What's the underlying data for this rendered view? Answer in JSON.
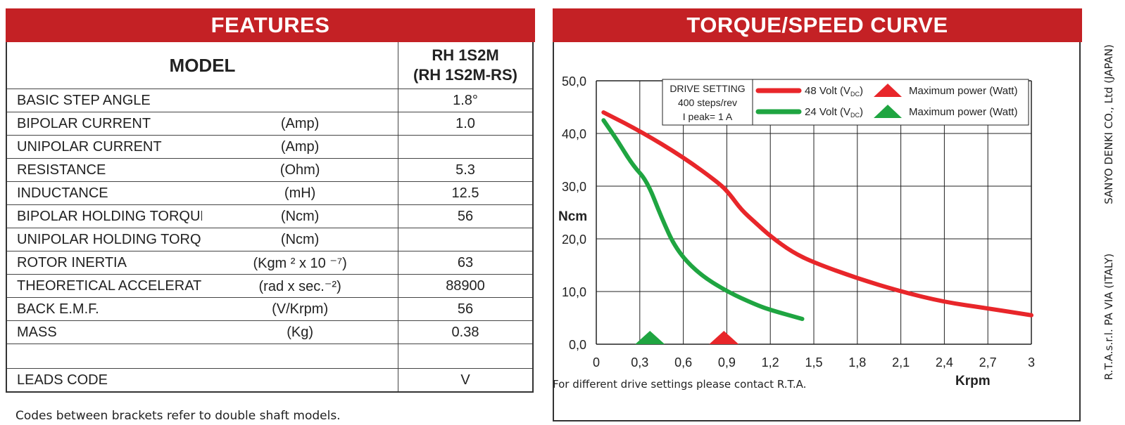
{
  "features": {
    "title": "FEATURES",
    "model_label": "MODEL",
    "model_value_line1": "RH 1S2M",
    "model_value_line2": "(RH 1S2M-RS)",
    "rows": [
      {
        "label": "BASIC STEP ANGLE",
        "unit": "",
        "value": "1.8°"
      },
      {
        "label": "BIPOLAR CURRENT",
        "unit": "(Amp)",
        "value": "1.0"
      },
      {
        "label": "UNIPOLAR CURRENT",
        "unit": "(Amp)",
        "value": ""
      },
      {
        "label": "RESISTANCE",
        "unit": "(Ohm)",
        "value": "5.3"
      },
      {
        "label": "INDUCTANCE",
        "unit": "(mH)",
        "value": "12.5"
      },
      {
        "label": "BIPOLAR HOLDING TORQUE",
        "unit": "(Ncm)",
        "value": "56"
      },
      {
        "label": "UNIPOLAR HOLDING TORQUE",
        "unit": "(Ncm)",
        "value": ""
      },
      {
        "label": "ROTOR INERTIA",
        "unit": "(Kgm ² x 10 ⁻⁷)",
        "value": "63"
      },
      {
        "label": "THEORETICAL ACCELERATION",
        "unit": "(rad x sec.⁻²)",
        "value": "88900"
      },
      {
        "label": "BACK E.M.F.",
        "unit": "(V/Krpm)",
        "value": "56"
      },
      {
        "label": "MASS",
        "unit": "(Kg)",
        "value": "0.38"
      },
      {
        "label": "",
        "unit": "",
        "value": ""
      },
      {
        "label": "LEADS CODE",
        "unit": "",
        "value": "V"
      }
    ],
    "footnote": "Codes between brackets refer to double shaft models."
  },
  "chart_data": {
    "type": "line",
    "title": "TORQUE/SPEED CURVE",
    "xlabel": "Krpm",
    "ylabel": "Ncm",
    "xlim": [
      0,
      3
    ],
    "ylim": [
      0,
      50
    ],
    "x_ticks": [
      "0",
      "0,3",
      "0,6",
      "0,9",
      "1,2",
      "1,5",
      "1,8",
      "2,1",
      "2,4",
      "2,7",
      "3"
    ],
    "y_ticks": [
      "0,0",
      "10,0",
      "20,0",
      "30,0",
      "40,0",
      "50,0"
    ],
    "grid": true,
    "drive_setting": {
      "title": "DRIVE SETTING",
      "steps": "400 steps/rev",
      "peak": "I peak= 1 A"
    },
    "series": [
      {
        "name": "48 Volt (V",
        "name_sub": "DC",
        "name_end": ")",
        "color": "#e8262a",
        "x": [
          0.05,
          0.3,
          0.6,
          0.85,
          0.92,
          1.0,
          1.1,
          1.2,
          1.35,
          1.5,
          1.8,
          2.1,
          2.4,
          2.7,
          3.0
        ],
        "y": [
          44.0,
          40.5,
          35.5,
          30.5,
          28.5,
          25.5,
          23.0,
          20.5,
          17.5,
          15.5,
          12.5,
          10.0,
          8.0,
          6.8,
          5.5
        ]
      },
      {
        "name": "24 Volt (V",
        "name_sub": "DC",
        "name_end": ")",
        "color": "#1fa541",
        "x": [
          0.05,
          0.15,
          0.25,
          0.35,
          0.45,
          0.55,
          0.7,
          0.9,
          1.1,
          1.2,
          1.42
        ],
        "y": [
          42.5,
          38.5,
          34.0,
          31.0,
          24.0,
          18.0,
          13.5,
          10.0,
          7.5,
          6.5,
          4.8
        ]
      }
    ],
    "markers": [
      {
        "label": "Maximum power (Watt)",
        "x": 0.88,
        "color": "#e8262a"
      },
      {
        "label": "Maximum power (Watt)",
        "x": 0.37,
        "color": "#1fa541"
      }
    ],
    "note": "For different drive settings please contact R.T.A."
  },
  "side_text": {
    "left": "R.T.A.s.r.l. PA  VIA (ITALY)",
    "right": "SANYO DENKI CO., Ltd (JAPAN)"
  }
}
